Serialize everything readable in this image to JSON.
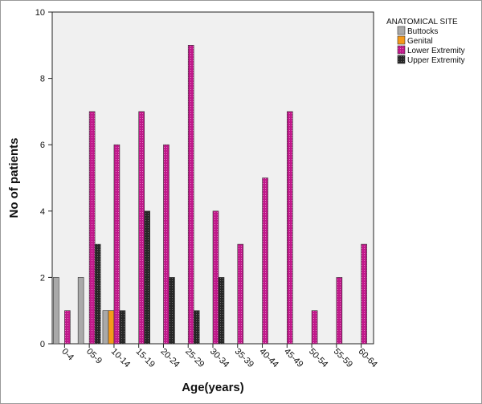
{
  "chart_data": {
    "type": "bar",
    "xlabel": "Age(years)",
    "ylabel": "No of patients",
    "ylim": [
      0,
      10
    ],
    "yticks": [
      0,
      2,
      4,
      6,
      8,
      10
    ],
    "grid": false,
    "legend_position": "top-right",
    "legend_title": "ANATOMICAL SITE",
    "categories": [
      "0-4",
      "05-9",
      "10-14",
      "15-19",
      "20-24",
      "25-29",
      "30-34",
      "35-39",
      "40-44",
      "45-49",
      "50-54",
      "55-59",
      "60-64"
    ],
    "series": [
      {
        "name": "Buttocks",
        "color": "#a9a9a9",
        "values": [
          2,
          2,
          1,
          0,
          0,
          0,
          0,
          0,
          0,
          0,
          0,
          0,
          0
        ]
      },
      {
        "name": "Genital",
        "color": "#f59a1b",
        "values": [
          0,
          0,
          1,
          0,
          0,
          0,
          0,
          0,
          0,
          0,
          0,
          0,
          0
        ]
      },
      {
        "name": "Lower Extremity",
        "color": "#c0188a",
        "values": [
          1,
          7,
          6,
          7,
          6,
          9,
          4,
          3,
          5,
          7,
          1,
          2,
          3
        ]
      },
      {
        "name": "Upper Extremity",
        "color": "#262626",
        "values": [
          0,
          3,
          1,
          4,
          2,
          1,
          2,
          0,
          0,
          0,
          0,
          0,
          0
        ]
      }
    ]
  },
  "colors": {
    "plot_background": "#f0f0f0",
    "bar_stroke": "#333333"
  }
}
